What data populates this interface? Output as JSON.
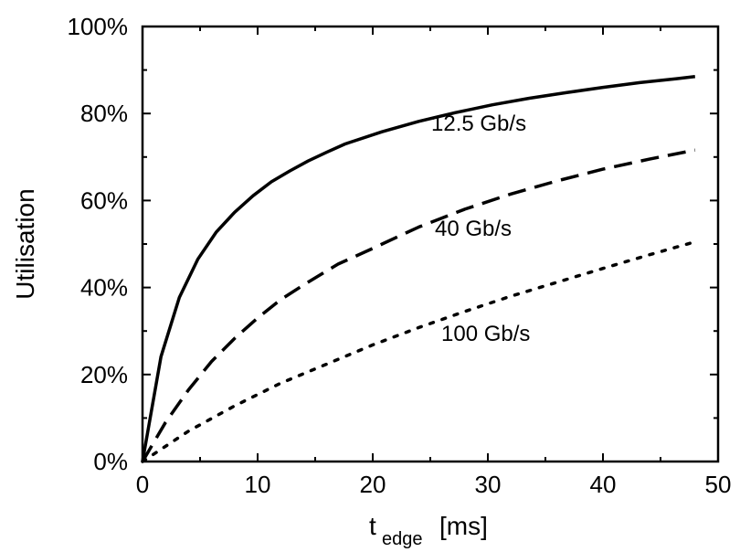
{
  "chart_data": {
    "type": "line",
    "title": "",
    "xlabel_main": "t",
    "xlabel_sub": "edge",
    "xlabel_unit": "[ms]",
    "ylabel": "Utilisation",
    "xlim": [
      0,
      50
    ],
    "ylim": [
      0,
      100
    ],
    "xticks": [
      0,
      10,
      20,
      30,
      40,
      50
    ],
    "xtick_labels": [
      "0",
      "10",
      "20",
      "30",
      "40",
      "50"
    ],
    "yticks": [
      0,
      20,
      40,
      60,
      80,
      100
    ],
    "ytick_labels": [
      "0%",
      "20%",
      "40%",
      "60%",
      "80%",
      "100%"
    ],
    "grid": false,
    "legend": "inline labels",
    "series": [
      {
        "name": "12.5 Gb/s",
        "style": "solid",
        "x": [
          0,
          1.6,
          3.2,
          4.8,
          6.4,
          8,
          9.6,
          11.2,
          12.8,
          14.4,
          16,
          17.6,
          20.8,
          24,
          27.2,
          30.4,
          33.6,
          36.8,
          40,
          43.2,
          46.4,
          48
        ],
        "y": [
          0,
          24.1,
          37.7,
          46.5,
          52.7,
          57.3,
          61.1,
          64.3,
          66.8,
          69.1,
          71.1,
          73.0,
          75.8,
          78.2,
          80.2,
          82.0,
          83.5,
          84.8,
          86.0,
          87.1,
          88.0,
          88.5
        ]
      },
      {
        "name": "40 Gb/s",
        "style": "dashed",
        "x": [
          0,
          2,
          4,
          6,
          8,
          10,
          12,
          14,
          17,
          20,
          24,
          28,
          32,
          36,
          40,
          44,
          48
        ],
        "y": [
          0,
          9.0,
          16.5,
          23.0,
          28.3,
          33.0,
          37.2,
          40.6,
          45.4,
          49.0,
          53.9,
          58.0,
          61.5,
          64.5,
          67.2,
          69.5,
          71.6
        ]
      },
      {
        "name": "100 Gb/s",
        "style": "dotted",
        "x": [
          0,
          4,
          8,
          12,
          16,
          20,
          24,
          28,
          32,
          36,
          40,
          44,
          48
        ],
        "y": [
          0,
          7.0,
          12.8,
          18.0,
          22.4,
          26.8,
          30.8,
          34.5,
          38.0,
          41.2,
          44.4,
          47.5,
          50.5
        ]
      }
    ]
  }
}
